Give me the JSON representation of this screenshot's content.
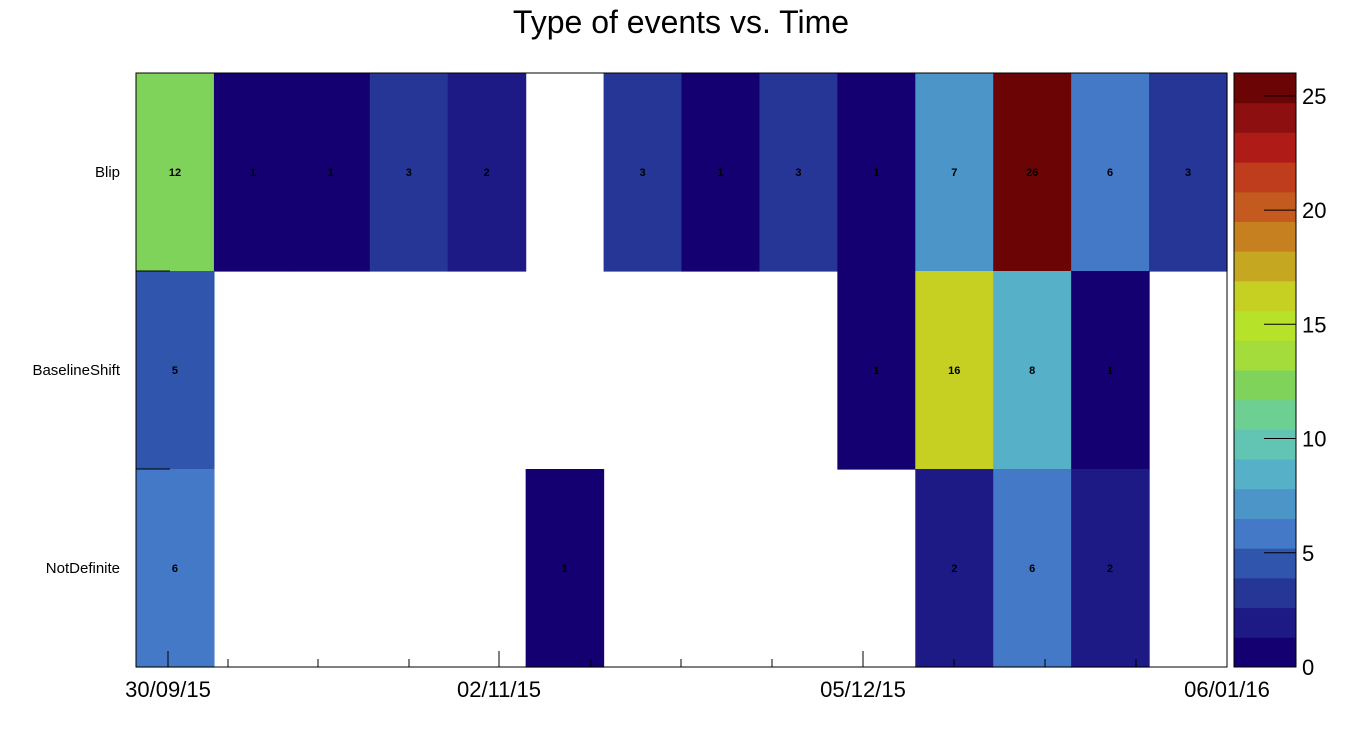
{
  "chart_data": {
    "type": "heatmap",
    "title": "Type of events vs. Time",
    "xlabel": "",
    "ylabel": "",
    "rows": [
      "Blip",
      "BaselineShift",
      "NotDefinite"
    ],
    "x_tick_labels": [
      "30/09/15",
      "02/11/15",
      "05/12/15",
      "06/01/16"
    ],
    "n_columns": 14,
    "values": [
      [
        12,
        1,
        1,
        3,
        2,
        null,
        3,
        1,
        3,
        1,
        7,
        26,
        6,
        3
      ],
      [
        5,
        null,
        null,
        null,
        null,
        null,
        null,
        null,
        null,
        1,
        16,
        8,
        1,
        null
      ],
      [
        6,
        null,
        null,
        null,
        null,
        1,
        null,
        null,
        null,
        null,
        2,
        6,
        2,
        null
      ]
    ],
    "zlim": [
      0,
      26
    ],
    "colorbar_ticks": [
      "0",
      "5",
      "10",
      "15",
      "20",
      "25"
    ],
    "colorbar_tick_values": [
      0,
      5,
      10,
      15,
      20,
      25
    ],
    "palette": [
      "#140070",
      "#1d1a86",
      "#263696",
      "#2f55ad",
      "#4379c7",
      "#4b95c9",
      "#56b0c8",
      "#62c5b4",
      "#6ecf93",
      "#7fd35b",
      "#a4dc3b",
      "#b6e22a",
      "#c6d022",
      "#c5a722",
      "#c6801f",
      "#c45a1f",
      "#bf3c1d",
      "#af1c18",
      "#8e0f0f",
      "#6b0505"
    ],
    "grid": false,
    "legend": "colorbar-right"
  }
}
